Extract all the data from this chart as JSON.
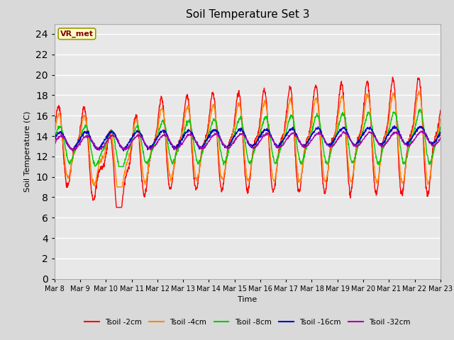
{
  "title": "Soil Temperature Set 3",
  "xlabel": "Time",
  "ylabel": "Soil Temperature (C)",
  "ylim": [
    0,
    25
  ],
  "yticks": [
    0,
    2,
    4,
    6,
    8,
    10,
    12,
    14,
    16,
    18,
    20,
    22,
    24
  ],
  "background_color": "#d9d9d9",
  "plot_bg_color": "#e8e8e8",
  "grid_color": "#ffffff",
  "annotation_text": "VR_met",
  "annotation_bg": "#ffffcc",
  "annotation_border": "#999900",
  "series": [
    {
      "label": "Tsoil -2cm",
      "color": "#ff0000",
      "lw": 1.0
    },
    {
      "label": "Tsoil -4cm",
      "color": "#ff8800",
      "lw": 1.0
    },
    {
      "label": "Tsoil -8cm",
      "color": "#00cc00",
      "lw": 1.0
    },
    {
      "label": "Tsoil -16cm",
      "color": "#0000cc",
      "lw": 1.0
    },
    {
      "label": "Tsoil -32cm",
      "color": "#aa00aa",
      "lw": 1.0
    }
  ],
  "xtick_labels": [
    "Mar 8",
    "Mar 9",
    "Mar 10",
    "Mar 11",
    "Mar 12",
    "Mar 13",
    "Mar 14",
    "Mar 15",
    "Mar 16",
    "Mar 17",
    "Mar 18",
    "Mar 19",
    "Mar 20",
    "Mar 21",
    "Mar 22",
    "Mar 23"
  ]
}
